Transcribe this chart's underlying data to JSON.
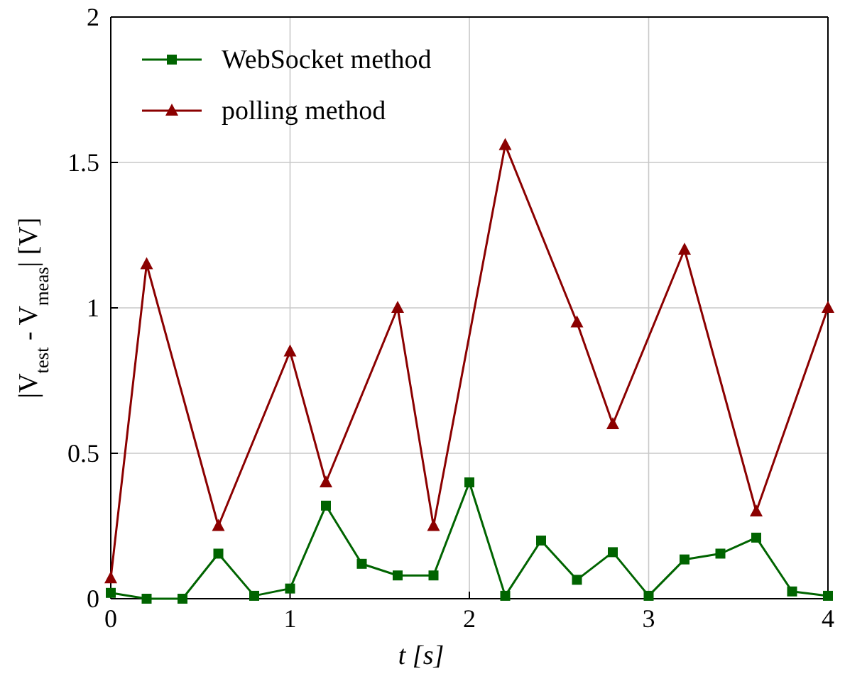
{
  "chart_data": {
    "type": "line",
    "xlabel": "t [s]",
    "ylabel": "|V$_{test}$ - V$_{meas}$| [V]",
    "xlim": [
      0,
      4
    ],
    "ylim": [
      0,
      2
    ],
    "xticks": [
      0,
      1,
      2,
      3,
      4
    ],
    "yticks": [
      0,
      0.5,
      1,
      1.5,
      2
    ],
    "grid": true,
    "legend": "top left",
    "series": [
      {
        "name": "WebSocket method",
        "color": "#006400",
        "marker": "square",
        "x": [
          0,
          0.2,
          0.4,
          0.6,
          0.8,
          1.0,
          1.2,
          1.4,
          1.6,
          1.8,
          2.0,
          2.2,
          2.4,
          2.6,
          2.8,
          3.0,
          3.2,
          3.4,
          3.6,
          3.8,
          4.0
        ],
        "values": [
          0.02,
          0.0,
          0.0,
          0.155,
          0.01,
          0.035,
          0.32,
          0.12,
          0.08,
          0.08,
          0.4,
          0.01,
          0.2,
          0.065,
          0.16,
          0.01,
          0.135,
          0.155,
          0.21,
          0.025,
          0.01
        ]
      },
      {
        "name": "polling method",
        "color": "#8b0000",
        "marker": "triangle",
        "x": [
          0,
          0.2,
          0.6,
          1.0,
          1.2,
          1.6,
          1.8,
          2.2,
          2.6,
          2.8,
          3.2,
          3.6,
          4.0
        ],
        "values": [
          0.07,
          1.15,
          0.25,
          0.85,
          0.4,
          1.0,
          0.25,
          1.56,
          0.95,
          0.6,
          1.2,
          0.3,
          1.0
        ]
      }
    ]
  }
}
